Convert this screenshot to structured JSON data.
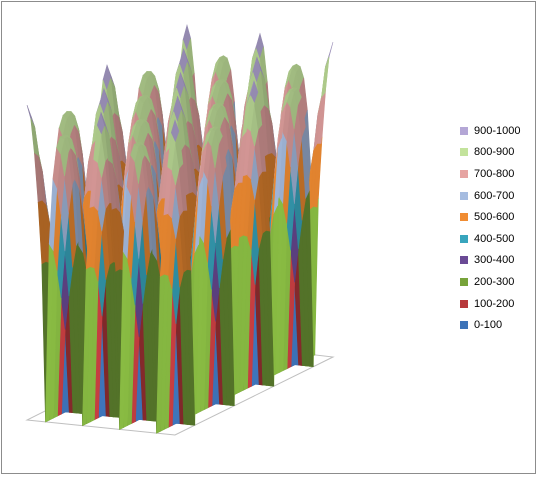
{
  "chart_data": {
    "type": "surface",
    "title": "",
    "legend_position": "right",
    "grid": false,
    "zlim": [
      0,
      1000
    ],
    "surface_function": "500 + 500*(cos(3*PI*u)*cos(3*PI*v))^0.5 sign-folded to sharp minima",
    "z_sample_grid": {
      "u": [
        -1,
        -0.5,
        0,
        0.5,
        1
      ],
      "v": [
        -1,
        -0.5,
        0,
        0.5,
        1
      ],
      "z": [
        [
          950,
          0,
          950,
          0,
          950
        ],
        [
          0,
          930,
          0,
          930,
          0
        ],
        [
          950,
          0,
          960,
          0,
          950
        ],
        [
          0,
          930,
          0,
          930,
          0
        ],
        [
          950,
          0,
          950,
          0,
          950
        ]
      ]
    },
    "bands": [
      {
        "label": "900-1000",
        "min": 900,
        "max": 1000,
        "color": "#b4a7d6"
      },
      {
        "label": "800-900",
        "min": 800,
        "max": 900,
        "color": "#c3e39c"
      },
      {
        "label": "700-800",
        "min": 700,
        "max": 800,
        "color": "#e6a4a2"
      },
      {
        "label": "600-700",
        "min": 600,
        "max": 700,
        "color": "#a6bce0"
      },
      {
        "label": "500-600",
        "min": 500,
        "max": 600,
        "color": "#f08c32"
      },
      {
        "label": "400-500",
        "min": 400,
        "max": 500,
        "color": "#38a5bd"
      },
      {
        "label": "300-400",
        "min": 300,
        "max": 400,
        "color": "#6a4a95"
      },
      {
        "label": "200-300",
        "min": 200,
        "max": 300,
        "color": "#77a33a"
      },
      {
        "label": "100-200",
        "min": 100,
        "max": 200,
        "color": "#b7393c"
      },
      {
        "label": "0-100",
        "min": 0,
        "max": 100,
        "color": "#3d73b8"
      }
    ]
  }
}
